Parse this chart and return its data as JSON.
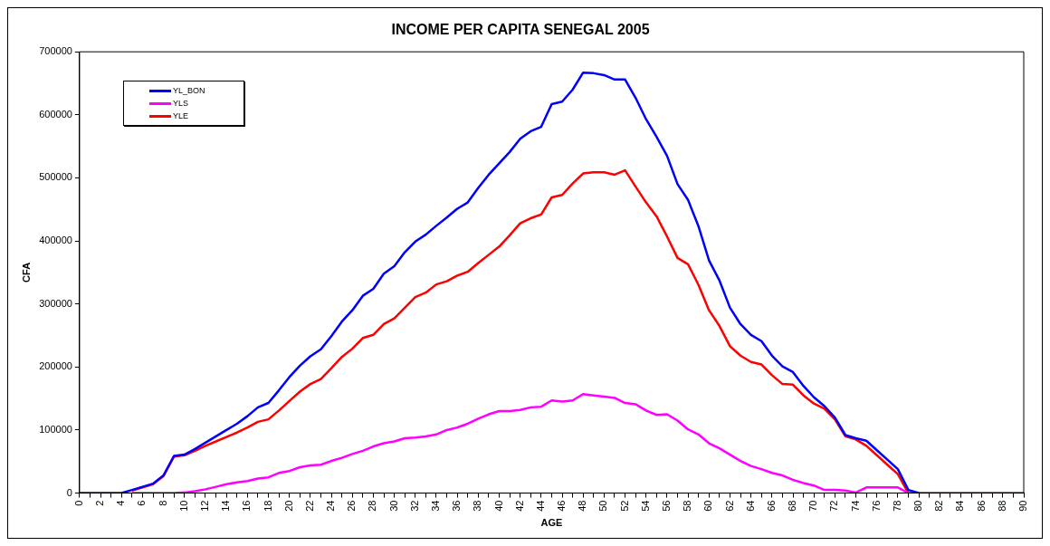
{
  "chart_data": {
    "type": "line",
    "title": "INCOME PER CAPITA SENEGAL 2005",
    "xlabel": "AGE",
    "ylabel": "CFA",
    "categories": [
      "0",
      null,
      "2",
      null,
      "4",
      null,
      "6",
      null,
      "8",
      null,
      "10",
      null,
      "12",
      null,
      "14",
      null,
      "16",
      null,
      "18",
      null,
      "20",
      null,
      "22",
      null,
      "24",
      null,
      "26",
      null,
      "28",
      null,
      "30",
      null,
      "32",
      null,
      "34",
      null,
      "36",
      null,
      "38",
      null,
      "40",
      null,
      "42",
      null,
      "44",
      null,
      "46",
      null,
      "48",
      null,
      "50",
      null,
      "52",
      null,
      "54",
      null,
      "56",
      null,
      "58",
      null,
      "60",
      null,
      "62",
      null,
      "64",
      null,
      "66",
      null,
      "68",
      null,
      "70",
      null,
      "72",
      null,
      "74",
      null,
      "76",
      null,
      "78",
      null,
      "80",
      null,
      "82",
      null,
      "84",
      null,
      "86",
      null,
      "88",
      null,
      "90"
    ],
    "series": [
      {
        "name": "YL_BON",
        "color": "#0000ff",
        "values": [
          0,
          0,
          0,
          0,
          0,
          5000,
          10000,
          15000,
          28000,
          59000,
          61000,
          70000,
          80000,
          90000,
          100000,
          110000,
          122000,
          136000,
          143000,
          163000,
          184000,
          202000,
          217000,
          228000,
          249000,
          272000,
          290000,
          313000,
          324000,
          348000,
          360000,
          382000,
          399000,
          410000,
          424000,
          437000,
          451000,
          461000,
          484000,
          505000,
          523000,
          541000,
          562000,
          574000,
          581000,
          617000,
          621000,
          640000,
          667000,
          666000,
          663000,
          656000,
          656000,
          627000,
          593000,
          565000,
          535000,
          490000,
          465000,
          423000,
          369000,
          337000,
          294000,
          268000,
          251000,
          241000,
          218000,
          201000,
          192000,
          170000,
          152000,
          138000,
          120000,
          92000,
          87000,
          83000,
          68000,
          53000,
          38000,
          5000,
          0,
          null,
          null,
          null,
          null,
          null,
          null,
          null,
          null,
          null,
          null
        ]
      },
      {
        "name": "YLS",
        "color": "#ff00ff",
        "values": [
          null,
          null,
          null,
          null,
          null,
          0,
          0,
          0,
          0,
          0,
          1000,
          3000,
          6000,
          10000,
          14000,
          17000,
          19000,
          23000,
          25000,
          32000,
          35000,
          41000,
          44000,
          45000,
          51000,
          56000,
          62000,
          67000,
          74000,
          79000,
          82000,
          87000,
          88000,
          90000,
          93000,
          100000,
          104000,
          110000,
          118000,
          125000,
          130000,
          130000,
          132000,
          136000,
          137000,
          147000,
          145000,
          147000,
          157000,
          155000,
          153000,
          151000,
          143000,
          141000,
          131000,
          124000,
          125000,
          115000,
          101000,
          93000,
          79000,
          71000,
          61000,
          51000,
          43000,
          38000,
          32000,
          28000,
          21000,
          16000,
          12000,
          5000,
          5000,
          4000,
          1000,
          9000,
          9000,
          9000,
          9000,
          0,
          0,
          null,
          null,
          null,
          null,
          null,
          null,
          null,
          null,
          null,
          null
        ]
      },
      {
        "name": "YLE",
        "color": "#ff0000",
        "values": [
          null,
          null,
          null,
          null,
          null,
          4000,
          9000,
          14000,
          27000,
          58000,
          60000,
          67000,
          75000,
          82000,
          89000,
          96000,
          104000,
          113000,
          117000,
          131000,
          146000,
          161000,
          173000,
          181000,
          198000,
          216000,
          229000,
          246000,
          251000,
          268000,
          277000,
          294000,
          311000,
          318000,
          331000,
          336000,
          345000,
          351000,
          365000,
          378000,
          391000,
          409000,
          428000,
          436000,
          442000,
          469000,
          473000,
          491000,
          507000,
          509000,
          509000,
          505000,
          512000,
          486000,
          461000,
          439000,
          407000,
          373000,
          363000,
          330000,
          290000,
          265000,
          233000,
          218000,
          208000,
          204000,
          187000,
          173000,
          172000,
          155000,
          142000,
          134000,
          117000,
          90000,
          85000,
          75000,
          60000,
          45000,
          30000,
          0,
          0,
          0,
          0,
          0,
          0,
          0,
          0,
          0,
          0,
          0,
          0
        ]
      }
    ],
    "ylim": [
      0,
      700000
    ],
    "yticks": [
      0,
      100000,
      200000,
      300000,
      400000,
      500000,
      600000,
      700000
    ],
    "grid": false,
    "legend": "top left",
    "marker": "none",
    "line_style": "solid"
  }
}
